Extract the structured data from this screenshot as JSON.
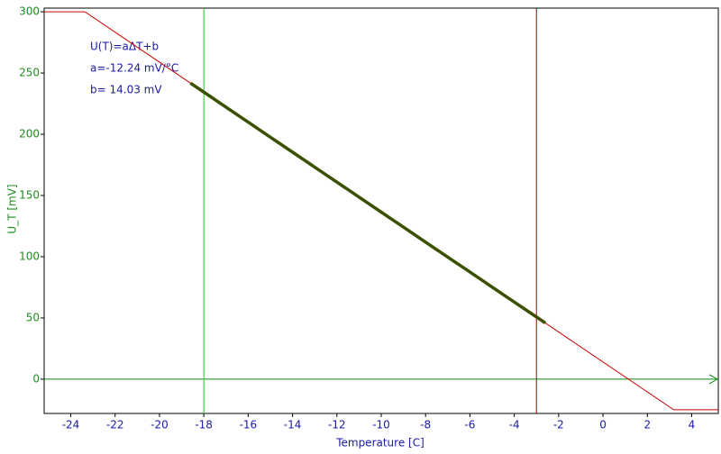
{
  "chart_data": {
    "type": "line",
    "x_label": "Temperature [C]",
    "y_label": "U_T [mV]",
    "annotations": [
      "U(T)=aΔT+b",
      "a=-12.24 mV/°C",
      "b= 14.03 mV"
    ],
    "xlim": [
      -25.2,
      5.2
    ],
    "ylim": [
      -28,
      303
    ],
    "xticks": [
      -24,
      -22,
      -20,
      -18,
      -16,
      -14,
      -12,
      -10,
      -8,
      -6,
      -4,
      -2,
      0,
      2,
      4
    ],
    "yticks": [
      0,
      50,
      100,
      150,
      200,
      250,
      300
    ],
    "series": [
      {
        "color": "#cc0000",
        "x": [
          -25.2,
          -23.36,
          3.19,
          5.2
        ],
        "values": [
          300,
          300,
          -25,
          -25
        ]
      },
      {
        "color": "#3a5200",
        "x": [
          -18.6,
          -18,
          -17,
          -16,
          -15,
          -14,
          -13,
          -12,
          -11,
          -10,
          -9,
          -8,
          -7,
          -6,
          -5,
          -4,
          -3,
          -2.6
        ],
        "values": [
          241.7,
          234.4,
          222.1,
          209.9,
          197.6,
          185.4,
          173.1,
          160.9,
          148.7,
          136.4,
          124.2,
          111.9,
          99.7,
          87.5,
          75.2,
          63.0,
          50.8,
          45.9
        ]
      }
    ],
    "vertical_lines": [
      {
        "x": -18,
        "color": "#22cc22"
      },
      {
        "x": -3,
        "color": "#aa0000"
      }
    ],
    "x_tick_color": "#1a1aa6",
    "y_tick_color": "#1f8c1f",
    "zero_line_color": "#118811"
  }
}
